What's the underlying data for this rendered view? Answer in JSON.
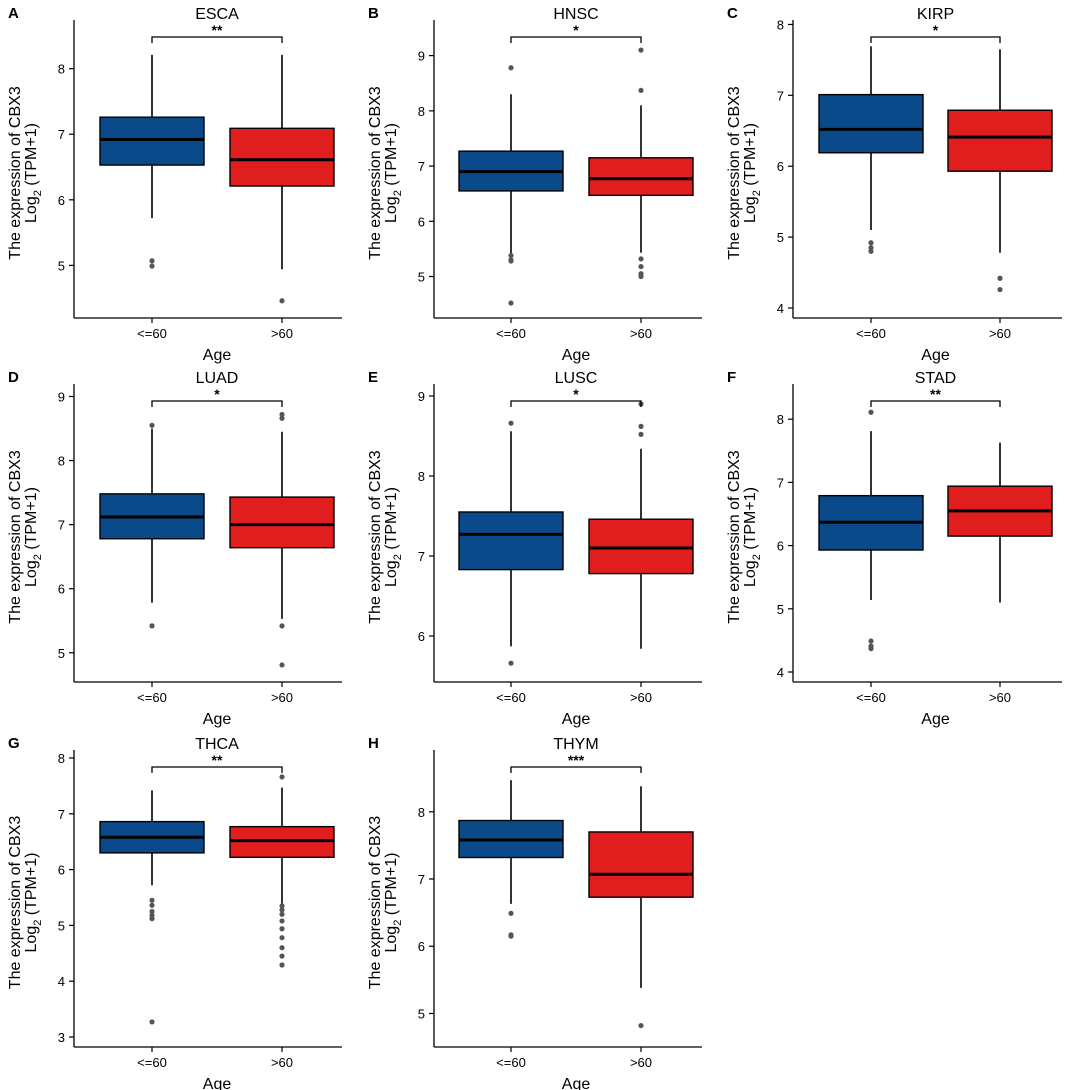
{
  "colors": {
    "group1": "#0b4a8a",
    "group2": "#e01e1e",
    "outlier": "#555555"
  },
  "chart_data": [
    {
      "type": "box",
      "panel": "A",
      "title": "ESCA",
      "xlabel": "Age",
      "ylabel_line1": "The expression of CBX3",
      "ylabel_line2_main": "Log",
      "ylabel_line2_sub": "2",
      "ylabel_line2_rest": " (TPM+1)",
      "ylim": [
        4.35,
        8.62
      ],
      "yticks": [
        5,
        6,
        7,
        8
      ],
      "yticks_labels": [
        "5",
        "6",
        "7",
        "8"
      ],
      "significance": "**",
      "groups": [
        {
          "name": "<=60",
          "whisker_low": 5.72,
          "q1": 6.53,
          "median": 6.92,
          "q3": 7.26,
          "whisker_high": 8.21,
          "outliers": [
            5.07,
            4.99
          ]
        },
        {
          "name": ">60",
          "whisker_low": 4.94,
          "q1": 6.21,
          "median": 6.61,
          "q3": 7.09,
          "whisker_high": 8.21,
          "outliers": [
            4.46
          ]
        }
      ]
    },
    {
      "type": "box",
      "panel": "B",
      "title": "HNSC",
      "xlabel": "Age",
      "ylabel_line1": "The expression of CBX3",
      "ylabel_line2_main": "Log",
      "ylabel_line2_sub": "2",
      "ylabel_line2_rest": " (TPM+1)",
      "ylim": [
        4.43,
        9.5
      ],
      "yticks": [
        5,
        6,
        7,
        8,
        9
      ],
      "yticks_labels": [
        "5",
        "6",
        "7",
        "8",
        "9"
      ],
      "significance": "*",
      "groups": [
        {
          "name": "<=60",
          "whisker_low": 5.42,
          "q1": 6.55,
          "median": 6.9,
          "q3": 7.27,
          "whisker_high": 8.3,
          "outliers": [
            8.78,
            5.38,
            5.3,
            5.28,
            4.52
          ]
        },
        {
          "name": ">60",
          "whisker_low": 5.43,
          "q1": 6.47,
          "median": 6.77,
          "q3": 7.15,
          "whisker_high": 8.1,
          "outliers": [
            9.1,
            8.37,
            5.32,
            5.18,
            5.05,
            5.0
          ]
        }
      ]
    },
    {
      "type": "box",
      "panel": "C",
      "title": "KIRP",
      "xlabel": "Age",
      "ylabel_line1": "The expression of CBX3",
      "ylabel_line2_main": "Log",
      "ylabel_line2_sub": "2",
      "ylabel_line2_rest": " (TPM+1)",
      "ylim": [
        4.0,
        7.95
      ],
      "yticks": [
        4,
        5,
        6,
        7,
        8
      ],
      "yticks_labels": [
        "4",
        "5",
        "6",
        "7",
        "8"
      ],
      "significance": "*",
      "groups": [
        {
          "name": "<=60",
          "whisker_low": 5.1,
          "q1": 6.19,
          "median": 6.52,
          "q3": 7.01,
          "whisker_high": 7.69,
          "outliers": [
            4.92,
            4.85,
            4.8
          ]
        },
        {
          "name": ">60",
          "whisker_low": 4.78,
          "q1": 5.93,
          "median": 6.41,
          "q3": 6.79,
          "whisker_high": 7.65,
          "outliers": [
            4.42,
            4.26
          ]
        }
      ]
    },
    {
      "type": "box",
      "panel": "D",
      "title": "LUAD",
      "xlabel": "Age",
      "ylabel_line1": "The expression of CBX3",
      "ylabel_line2_main": "Log",
      "ylabel_line2_sub": "2",
      "ylabel_line2_rest": " (TPM+1)",
      "ylim": [
        4.7,
        9.07
      ],
      "yticks": [
        5,
        6,
        7,
        8,
        9
      ],
      "yticks_labels": [
        "5",
        "6",
        "7",
        "8",
        "9"
      ],
      "significance": "*",
      "groups": [
        {
          "name": "<=60",
          "whisker_low": 5.78,
          "q1": 6.78,
          "median": 7.12,
          "q3": 7.48,
          "whisker_high": 8.5,
          "outliers": [
            8.55,
            5.42
          ]
        },
        {
          "name": ">60",
          "whisker_low": 5.53,
          "q1": 6.64,
          "median": 7.0,
          "q3": 7.43,
          "whisker_high": 8.45,
          "outliers": [
            8.72,
            8.66,
            5.42,
            4.81
          ]
        }
      ]
    },
    {
      "type": "box",
      "panel": "E",
      "title": "LUSC",
      "xlabel": "Age",
      "ylabel_line1": "The expression of CBX3",
      "ylabel_line2_main": "Log",
      "ylabel_line2_sub": "2",
      "ylabel_line2_rest": " (TPM+1)",
      "ylim": [
        5.55,
        9.05
      ],
      "yticks": [
        6,
        7,
        8,
        9
      ],
      "yticks_labels": [
        "6",
        "7",
        "8",
        "9"
      ],
      "significance": "*",
      "groups": [
        {
          "name": "<=60",
          "whisker_low": 5.87,
          "q1": 6.83,
          "median": 7.27,
          "q3": 7.55,
          "whisker_high": 8.56,
          "outliers": [
            8.66,
            5.66
          ]
        },
        {
          "name": ">60",
          "whisker_low": 5.84,
          "q1": 6.78,
          "median": 7.1,
          "q3": 7.46,
          "whisker_high": 8.34,
          "outliers": [
            8.9,
            8.62,
            8.52
          ]
        }
      ]
    },
    {
      "type": "box",
      "panel": "F",
      "title": "STAD",
      "xlabel": "Age",
      "ylabel_line1": "The expression of CBX3",
      "ylabel_line2_main": "Log",
      "ylabel_line2_sub": "2",
      "ylabel_line2_rest": " (TPM+1)",
      "ylim": [
        4.0,
        8.43
      ],
      "yticks": [
        4,
        5,
        6,
        7,
        8
      ],
      "yticks_labels": [
        "4",
        "5",
        "6",
        "7",
        "8"
      ],
      "significance": "**",
      "groups": [
        {
          "name": "<=60",
          "whisker_low": 5.14,
          "q1": 5.93,
          "median": 6.37,
          "q3": 6.79,
          "whisker_high": 7.81,
          "outliers": [
            8.11,
            4.49,
            4.41,
            4.37
          ]
        },
        {
          "name": ">60",
          "whisker_low": 5.1,
          "q1": 6.15,
          "median": 6.55,
          "q3": 6.94,
          "whisker_high": 7.63,
          "outliers": []
        }
      ]
    },
    {
      "type": "box",
      "panel": "G",
      "title": "THCA",
      "xlabel": "Age",
      "ylabel_line1": "The expression of CBX3",
      "ylabel_line2_main": "Log",
      "ylabel_line2_sub": "2",
      "ylabel_line2_rest": " (TPM+1)",
      "ylim": [
        3.0,
        8.0
      ],
      "yticks": [
        3,
        4,
        5,
        6,
        7,
        8
      ],
      "yticks_labels": [
        "3",
        "4",
        "5",
        "6",
        "7",
        "8"
      ],
      "significance": "**",
      "groups": [
        {
          "name": "<=60",
          "whisker_low": 5.72,
          "q1": 6.3,
          "median": 6.58,
          "q3": 6.86,
          "whisker_high": 7.42,
          "outliers": [
            5.45,
            5.36,
            5.25,
            5.18,
            5.12,
            3.27
          ]
        },
        {
          "name": ">60",
          "whisker_low": 5.37,
          "q1": 6.22,
          "median": 6.52,
          "q3": 6.77,
          "whisker_high": 7.47,
          "outliers": [
            7.66,
            5.35,
            5.28,
            5.2,
            5.08,
            4.94,
            4.78,
            4.6,
            4.45,
            4.29
          ]
        }
      ]
    },
    {
      "type": "box",
      "panel": "H",
      "title": "THYM",
      "xlabel": "Age",
      "ylabel_line1": "The expression of CBX3",
      "ylabel_line2_main": "Log",
      "ylabel_line2_sub": "2",
      "ylabel_line2_rest": " (TPM+1)",
      "ylim": [
        4.65,
        8.8
      ],
      "yticks": [
        5,
        6,
        7,
        8
      ],
      "yticks_labels": [
        "5",
        "6",
        "7",
        "8"
      ],
      "significance": "***",
      "groups": [
        {
          "name": "<=60",
          "whisker_low": 6.63,
          "q1": 7.32,
          "median": 7.58,
          "q3": 7.87,
          "whisker_high": 8.47,
          "outliers": [
            6.49,
            6.17,
            6.15
          ]
        },
        {
          "name": ">60",
          "whisker_low": 5.38,
          "q1": 6.73,
          "median": 7.07,
          "q3": 7.7,
          "whisker_high": 8.38,
          "outliers": [
            4.82
          ]
        }
      ]
    }
  ]
}
